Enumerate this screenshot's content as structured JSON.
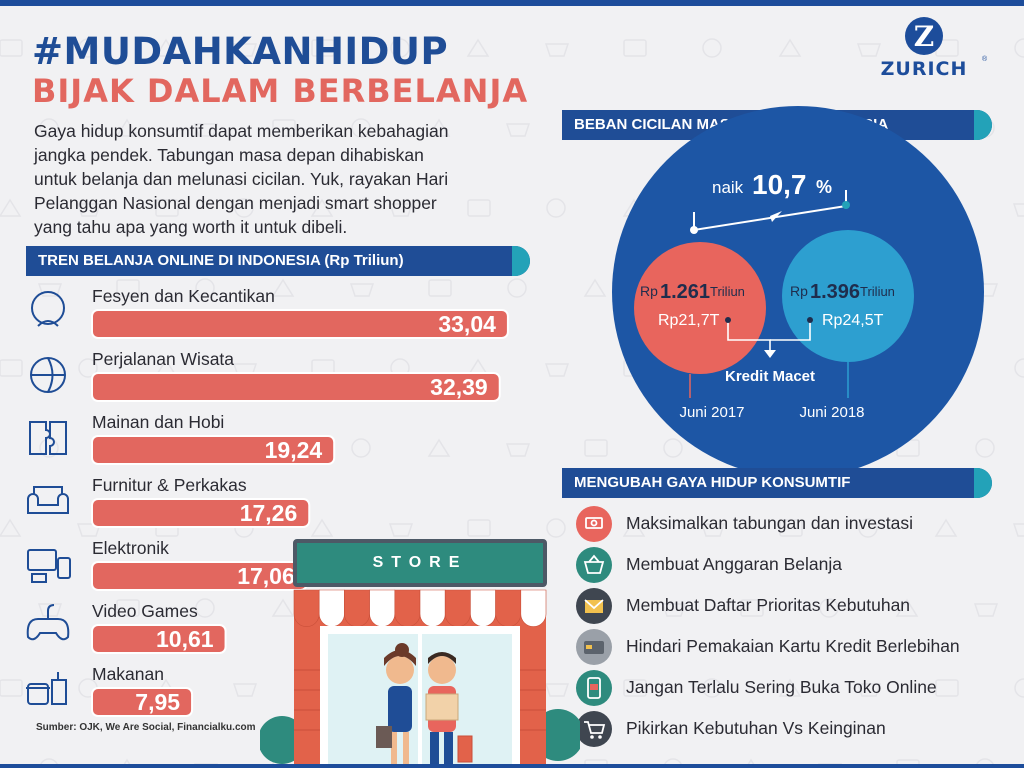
{
  "header": {
    "title": "#MUDAHKANHIDUP",
    "subtitle": "BIJAK DALAM BERBELANJA",
    "intro_lines": [
      "Gaya hidup konsumtif dapat memberikan kebahagian",
      "jangka pendek. Tabungan masa depan dihabiskan",
      "untuk belanja dan melunasi cicilan. Yuk, rayakan Hari",
      "Pelanggan Nasional dengan menjadi smart shopper",
      "yang tahu apa yang worth it untuk dibeli."
    ],
    "logo_text": "ZURICH",
    "logo_mark": "Z",
    "logo_reg": "®"
  },
  "colors": {
    "navy": "#1f4d96",
    "teal": "#23a2b8",
    "coral": "#e2675f",
    "bar": "#e2675f",
    "circle_big": "#1d56a5",
    "circle_2017": "#e8655d",
    "circle_2018": "#2d9fd0"
  },
  "online_trend": {
    "band_title": "TREN BELANJA ONLINE DI INDONESIA (Rp Triliun)",
    "source": "Sumber: OJK, We Are Social, Financialku.com"
  },
  "chart_data": {
    "type": "bar",
    "title": "TREN BELANJA ONLINE DI INDONESIA (Rp Triliun)",
    "categories": [
      "Fesyen dan Kecantikan",
      "Perjalanan Wisata",
      "Mainan dan Hobi",
      "Furnitur & Perkakas",
      "Elektronik",
      "Video Games",
      "Makanan"
    ],
    "values": [
      33.04,
      32.39,
      19.24,
      17.26,
      17.06,
      10.61,
      7.95
    ],
    "value_labels": [
      "33,04",
      "32,39",
      "19,24",
      "17,26",
      "17,06",
      "10,61",
      "7,95"
    ],
    "icons": [
      "beauty-icon",
      "globe-plane-icon",
      "puzzle-icon",
      "sofa-icon",
      "devices-icon",
      "gamepad-icon",
      "fastfood-icon"
    ],
    "orientation": "horizontal",
    "xlim": [
      0,
      34
    ]
  },
  "installment": {
    "band_title": "BEBAN CICILAN MASYARAKAT INDONESIA",
    "increase_prefix": "naik",
    "increase_value": "10,7",
    "increase_unit": "%",
    "y2017": {
      "currency": "Rp",
      "amount": "1.261",
      "unit": "Triliun",
      "bad_credit": "Rp21,7T",
      "period": "Juni 2017"
    },
    "y2018": {
      "currency": "Rp",
      "amount": "1.396",
      "unit": "Triliun",
      "bad_credit": "Rp24,5T",
      "period": "Juni 2018"
    },
    "bad_credit_label": "Kredit Macet"
  },
  "tips": {
    "band_title": "MENGUBAH GAYA HIDUP KONSUMTIF",
    "items": [
      {
        "label": "Maksimalkan tabungan dan investasi",
        "icon": "money-icon",
        "color": "#e8655d"
      },
      {
        "label": "Membuat Anggaran Belanja",
        "icon": "basket-icon",
        "color": "#2e8b7e"
      },
      {
        "label": "Membuat Daftar Prioritas Kebutuhan",
        "icon": "envelope-icon",
        "color": "#3f4650"
      },
      {
        "label": "Hindari Pemakaian Kartu Kredit Berlebihan",
        "icon": "credit-card-icon",
        "color": "#9aa0a8"
      },
      {
        "label": "Jangan Terlalu Sering Buka Toko Online",
        "icon": "online-shop-icon",
        "color": "#2e8b7e"
      },
      {
        "label": "Pikirkan Kebutuhan Vs Keinginan",
        "icon": "cart-icon",
        "color": "#3f4650"
      }
    ]
  },
  "store": {
    "sign": "STORE"
  }
}
